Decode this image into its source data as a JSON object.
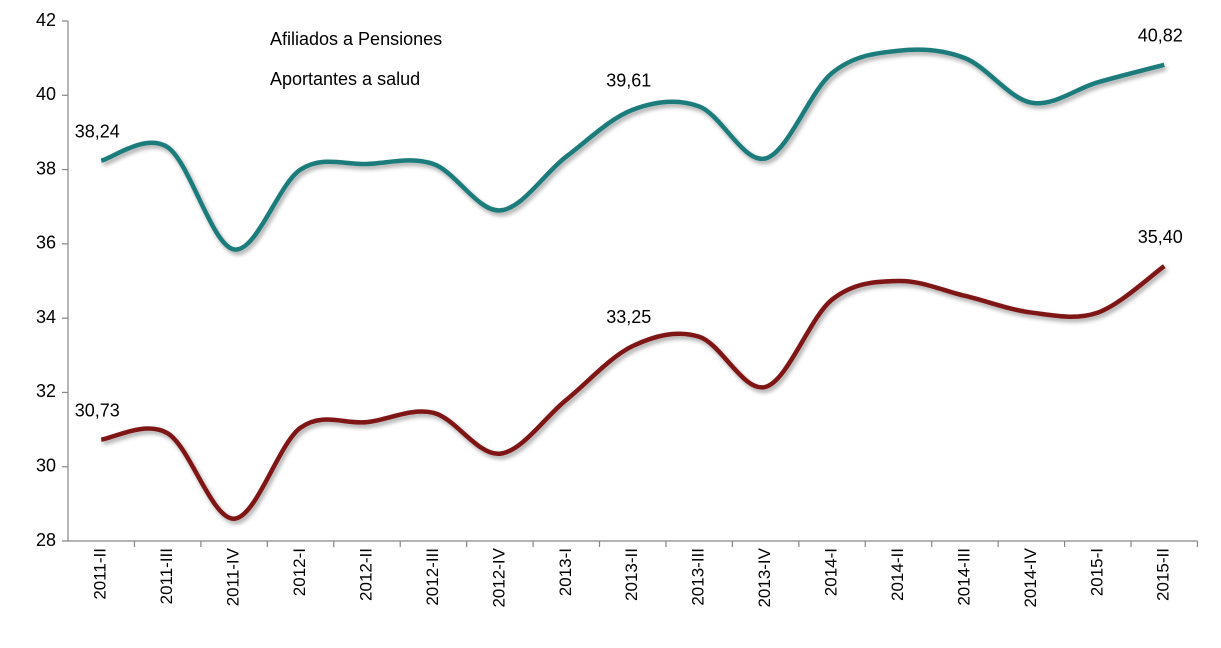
{
  "chart_data": {
    "type": "line",
    "categories": [
      "2011-II",
      "2011-III",
      "2011-IV",
      "2012-I",
      "2012-II",
      "2012-III",
      "2012-IV",
      "2013-I",
      "2013-II",
      "2013-III",
      "2013-IV",
      "2014-I",
      "2014-II",
      "2014-III",
      "2014-IV",
      "2015-I",
      "2015-II"
    ],
    "series": [
      {
        "name": "Afiliados a Pensiones",
        "color": "#7f1416",
        "values": [
          30.73,
          30.9,
          28.6,
          31.05,
          31.2,
          31.45,
          30.35,
          31.8,
          33.25,
          33.5,
          32.15,
          34.5,
          35.0,
          34.6,
          34.15,
          34.15,
          35.4
        ],
        "value_labels": [
          "30,73",
          null,
          null,
          null,
          null,
          null,
          null,
          null,
          "33,25",
          null,
          null,
          null,
          null,
          null,
          null,
          null,
          "35,40"
        ]
      },
      {
        "name": "Aportantes a salud",
        "color": "#1f7b7b",
        "values": [
          38.24,
          38.6,
          35.85,
          38.0,
          38.15,
          38.15,
          36.9,
          38.35,
          39.61,
          39.7,
          38.3,
          40.6,
          41.2,
          41.0,
          39.8,
          40.35,
          40.82
        ],
        "value_labels": [
          "38,24",
          null,
          null,
          null,
          null,
          null,
          null,
          null,
          "39,61",
          null,
          null,
          null,
          null,
          null,
          null,
          null,
          "40,82"
        ]
      }
    ],
    "ylim": [
      28,
      42
    ],
    "yticks": [
      28,
      30,
      32,
      34,
      36,
      38,
      40,
      42
    ],
    "legend": "upper left",
    "smooth": true
  }
}
